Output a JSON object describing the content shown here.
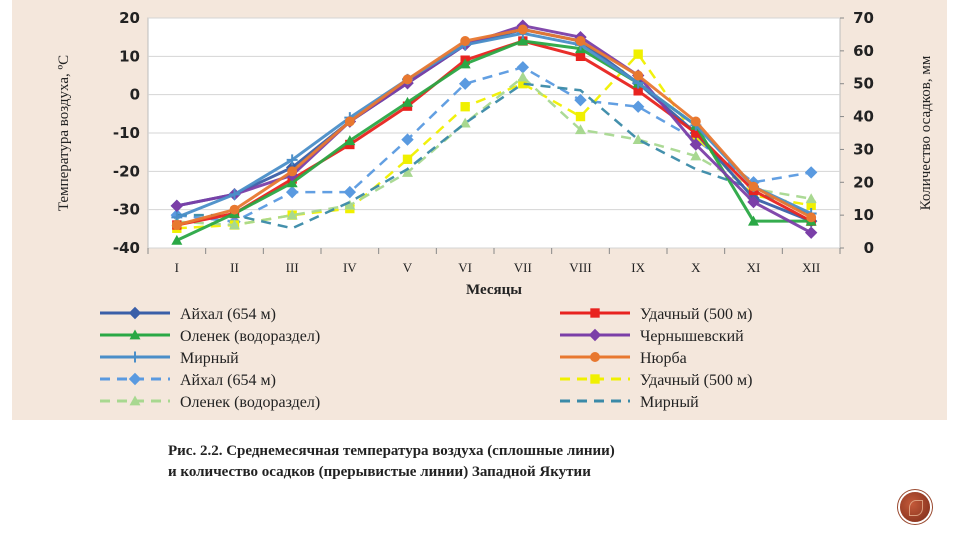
{
  "caption": {
    "line1": "Рис. 2.2. Среднемесячная температура воздуха (сплошные линии)",
    "line2": "и количество осадков (прерывистые линии) Западной Якутии"
  },
  "chart_data": {
    "type": "line",
    "xlabel": "Месяцы",
    "ylabel": "Температура воздуха, ºС",
    "y2label": "Количество осадков, мм",
    "categories": [
      "I",
      "II",
      "III",
      "IV",
      "V",
      "VI",
      "VII",
      "VIII",
      "IX",
      "X",
      "XI",
      "XII"
    ],
    "ylim": [
      -40,
      20
    ],
    "y2lim": [
      0,
      70
    ],
    "yticks": [
      "-40",
      "-30",
      "-20",
      "-10",
      "0",
      "10",
      "20"
    ],
    "y2ticks": [
      "0",
      "10",
      "20",
      "30",
      "40",
      "50",
      "60",
      "70"
    ],
    "grid": "horizontal",
    "legend_position": "bottom",
    "temperature_series": [
      {
        "name": "Айхал (654 м)",
        "color": "#3a5fa8",
        "marker": "diamond",
        "values": [
          -29,
          -26,
          -19,
          -7,
          3,
          13,
          17,
          14,
          3,
          -10,
          -27,
          -33
        ]
      },
      {
        "name": "Удачный (500 м)",
        "color": "#e8231f",
        "marker": "square",
        "values": [
          -34,
          -31,
          -22,
          -13,
          -3,
          9,
          14,
          10,
          1,
          -10,
          -25,
          -33
        ]
      },
      {
        "name": "Оленек (водораздел)",
        "color": "#2aa845",
        "marker": "triangle",
        "values": [
          -38,
          -31,
          -23,
          -12,
          -2,
          8,
          14,
          12,
          3,
          -8,
          -33,
          -33
        ]
      },
      {
        "name": "Чернышевский",
        "color": "#7b3fa8",
        "marker": "diamond",
        "values": [
          -29,
          -26,
          -21,
          -7,
          3,
          13,
          18,
          15,
          5,
          -13,
          -28,
          -36
        ]
      },
      {
        "name": "Мирный",
        "color": "#4a8ec8",
        "marker": "plus",
        "values": [
          -32,
          -26,
          -17,
          -6,
          4,
          13,
          16,
          13,
          3,
          -8,
          -24,
          -31
        ]
      },
      {
        "name": "Нюрба",
        "color": "#e87830",
        "marker": "circle",
        "values": [
          -34,
          -30,
          -20,
          -7,
          4,
          14,
          17,
          14,
          5,
          -7,
          -24,
          -32
        ]
      }
    ],
    "precipitation_series": [
      {
        "name": "Айхал (654 м)",
        "color": "#5a9ae0",
        "marker": "diamond",
        "values": [
          10,
          8,
          17,
          17,
          33,
          50,
          55,
          45,
          43,
          33,
          20,
          23
        ]
      },
      {
        "name": "Удачный (500 м)",
        "color": "#f0f000",
        "marker": "square",
        "values": [
          6,
          7,
          10,
          12,
          27,
          43,
          50,
          40,
          59,
          34,
          16,
          13
        ]
      },
      {
        "name": "Оленек (водораздел)",
        "color": "#a8d890",
        "marker": "triangle",
        "values": [
          8,
          7,
          10,
          13,
          23,
          38,
          52,
          36,
          33,
          28,
          18,
          15
        ]
      },
      {
        "name": "Мирный",
        "color": "#3a8aa8",
        "marker": "none",
        "values": [
          10,
          10,
          6,
          14,
          24,
          38,
          50,
          48,
          33,
          24,
          18,
          10
        ]
      }
    ],
    "legend": [
      {
        "label": "Айхал (654 м)",
        "color": "#3a5fa8",
        "dash": false,
        "marker": "diamond"
      },
      {
        "label": "Удачный (500 м)",
        "color": "#e8231f",
        "dash": false,
        "marker": "square"
      },
      {
        "label": "Оленек (водораздел)",
        "color": "#2aa845",
        "dash": false,
        "marker": "triangle"
      },
      {
        "label": "Чернышевский",
        "color": "#7b3fa8",
        "dash": false,
        "marker": "diamond"
      },
      {
        "label": "Мирный",
        "color": "#4a8ec8",
        "dash": false,
        "marker": "plus"
      },
      {
        "label": "Нюрба",
        "color": "#e87830",
        "dash": false,
        "marker": "circle"
      },
      {
        "label": "Айхал (654 м)",
        "color": "#5a9ae0",
        "dash": true,
        "marker": "diamond"
      },
      {
        "label": "Удачный (500 м)",
        "color": "#f0f000",
        "dash": true,
        "marker": "square"
      },
      {
        "label": "Оленек (водораздел)",
        "color": "#a8d890",
        "dash": true,
        "marker": "triangle"
      },
      {
        "label": "Мирный",
        "color": "#3a8aa8",
        "dash": true,
        "marker": "none"
      }
    ]
  }
}
